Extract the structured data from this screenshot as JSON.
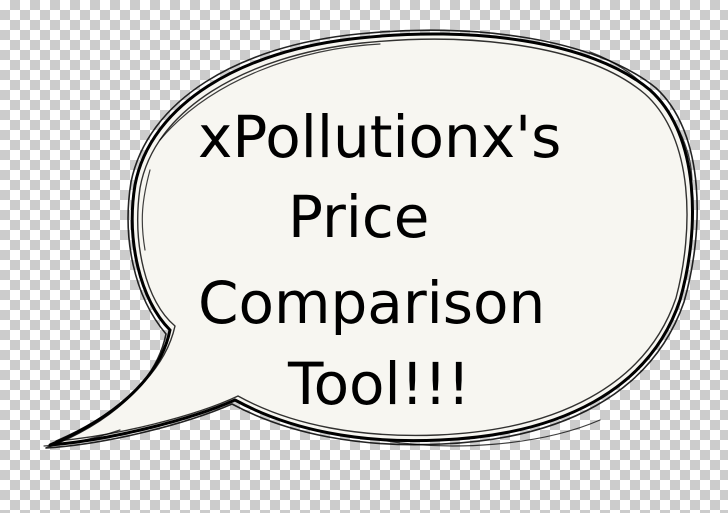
{
  "speech_bubble": {
    "lines": [
      "xPollutionx's",
      "Price",
      "Comparison",
      "Tool!!!"
    ]
  },
  "colors": {
    "checker_light": "#ffffff",
    "checker_dark": "#cccccc",
    "bubble_fill": "#f7f6f1",
    "ink": "#000000"
  }
}
